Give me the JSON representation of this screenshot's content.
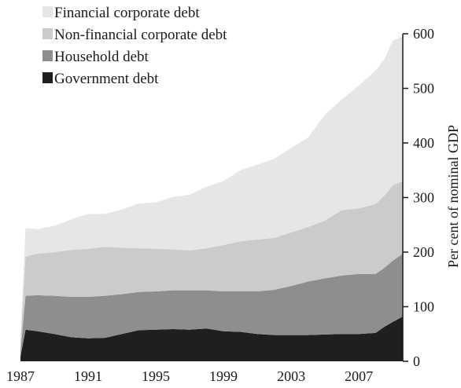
{
  "chart_data": {
    "type": "area",
    "stacked": true,
    "x": [
      1987.0,
      1987.3,
      1988,
      1989,
      1990,
      1991,
      1992,
      1993,
      1994,
      1995,
      1996,
      1997,
      1998,
      1999,
      2000,
      2001,
      2002,
      2003,
      2004,
      2005,
      2006,
      2007,
      2008,
      2008.5,
      2009,
      2009.6
    ],
    "series": [
      {
        "name": "Government debt",
        "color": "#1f1f1f",
        "values": [
          8,
          58,
          55,
          50,
          44,
          42,
          43,
          50,
          57,
          58,
          59,
          58,
          60,
          55,
          54,
          50,
          48,
          48,
          48,
          49,
          50,
          50,
          52,
          63,
          72,
          82
        ]
      },
      {
        "name": "Household debt",
        "color": "#8e8e8e",
        "values": [
          10,
          62,
          66,
          70,
          74,
          76,
          77,
          73,
          70,
          70,
          71,
          72,
          70,
          73,
          74,
          78,
          83,
          90,
          98,
          103,
          107,
          110,
          108,
          108,
          112,
          115
        ]
      },
      {
        "name": "Non-financial corporate debt",
        "color": "#cbcbcb",
        "values": [
          20,
          72,
          76,
          80,
          86,
          88,
          90,
          85,
          80,
          78,
          75,
          73,
          77,
          85,
          92,
          95,
          95,
          98,
          100,
          106,
          120,
          120,
          128,
          132,
          138,
          133
        ]
      },
      {
        "name": "Financial corporate debt",
        "color": "#e6e6e6",
        "values": [
          0,
          52,
          45,
          48,
          56,
          64,
          60,
          70,
          82,
          85,
          96,
          102,
          113,
          117,
          130,
          137,
          145,
          155,
          164,
          194,
          203,
          225,
          245,
          250,
          265,
          265
        ]
      }
    ],
    "xticks": [
      "1987",
      "1991",
      "1995",
      "1999",
      "2003",
      "2007"
    ],
    "xtick_values": [
      1987,
      1991,
      1995,
      1999,
      2003,
      2007
    ],
    "yticks": [
      0,
      100,
      200,
      300,
      400,
      500,
      600
    ],
    "ylim": [
      0,
      600
    ],
    "xlim": [
      1987,
      2009.6
    ],
    "ylabel": "Per cent of  nominal GDP",
    "y_axis_side": "right",
    "legend_position": "top-left",
    "legend_order": [
      "Financial corporate debt",
      "Non-financial corporate debt",
      "Household debt",
      "Government debt"
    ]
  }
}
